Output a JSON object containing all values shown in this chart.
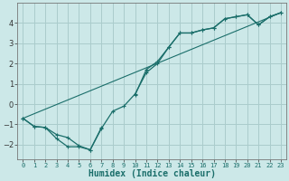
{
  "xlabel": "Humidex (Indice chaleur)",
  "bg_color": "#cce8e8",
  "grid_color": "#aacccc",
  "line_color": "#1a6e6a",
  "x_values": [
    0,
    1,
    2,
    3,
    4,
    5,
    6,
    7,
    8,
    9,
    10,
    11,
    12,
    13,
    14,
    15,
    16,
    17,
    18,
    19,
    20,
    21,
    22,
    23
  ],
  "line1": [
    -0.7,
    -1.1,
    -1.15,
    -1.7,
    -2.1,
    -2.1,
    -2.25,
    -1.2,
    -0.35,
    -0.1,
    0.5,
    1.55,
    2.0,
    2.8,
    3.5,
    3.5,
    3.65,
    3.75,
    4.2,
    4.3,
    4.4,
    3.9,
    4.3,
    4.5
  ],
  "line2": [
    -0.7,
    -1.1,
    -1.15,
    -1.5,
    -1.65,
    -2.05,
    -2.25,
    -1.15,
    null,
    null,
    0.45,
    1.7,
    2.1,
    2.8,
    3.5,
    3.5,
    3.65,
    3.75,
    4.2,
    4.3,
    4.4,
    3.9,
    4.3,
    4.5
  ],
  "line3_x": [
    0,
    23
  ],
  "line3_y": [
    -0.7,
    4.5
  ],
  "ylim": [
    -2.7,
    5.0
  ],
  "xlim": [
    -0.5,
    23.5
  ],
  "yticks": [
    -2,
    -1,
    0,
    1,
    2,
    3,
    4
  ],
  "xtick_labels": [
    "0",
    "1",
    "2",
    "3",
    "4",
    "5",
    "6",
    "7",
    "8",
    "9",
    "10",
    "11",
    "12",
    "13",
    "14",
    "15",
    "16",
    "17",
    "18",
    "19",
    "20",
    "21",
    "22",
    "23"
  ]
}
